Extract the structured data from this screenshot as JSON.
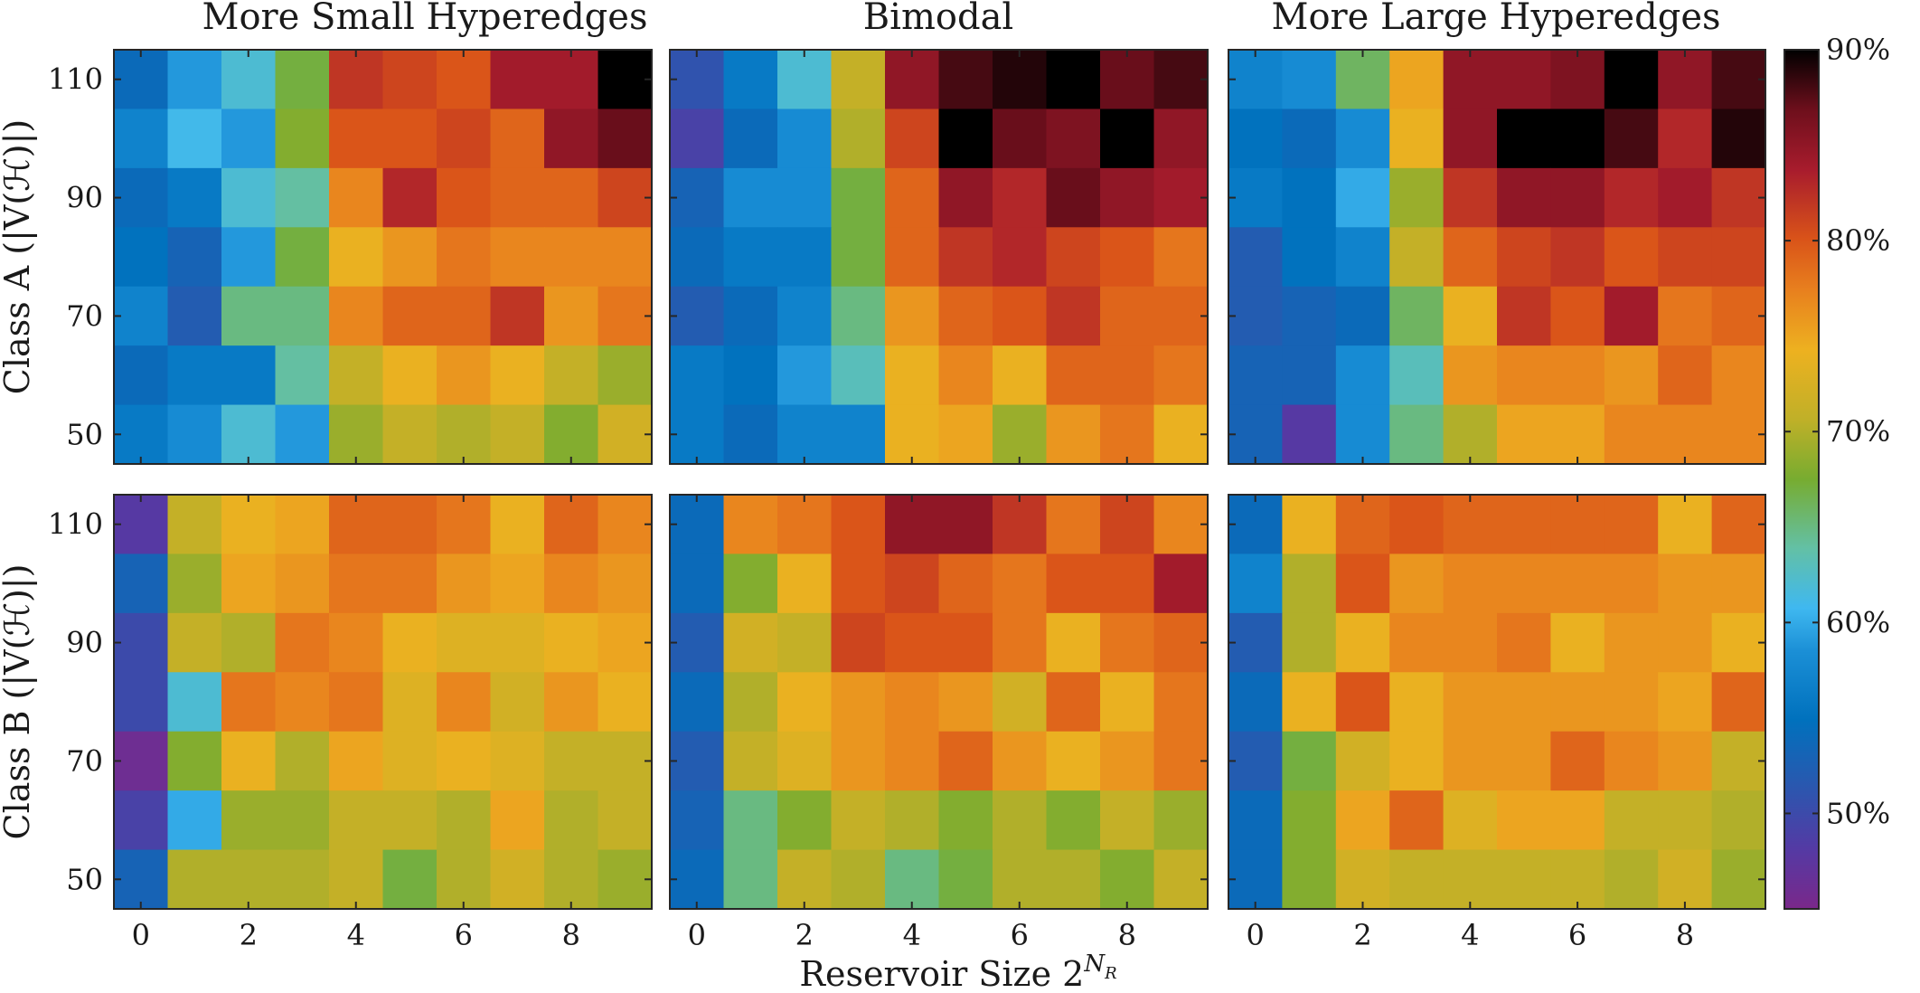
{
  "chart_data": {
    "type": "heatmap",
    "colormap": "parula-to-hot (purple, blue, cyan, green, yellow, orange, red, black)",
    "color_range": [
      45,
      90
    ],
    "colorbar": {
      "ticks": [
        50,
        60,
        70,
        80,
        90
      ],
      "tick_labels": [
        "50%",
        "60%",
        "70%",
        "80%",
        "90%"
      ]
    },
    "x_ticks": [
      0,
      2,
      4,
      6,
      8
    ],
    "y_ticks": [
      50,
      70,
      90,
      110
    ],
    "y_values": [
      110,
      100,
      90,
      80,
      70,
      60,
      50
    ],
    "x_values": [
      0,
      1,
      2,
      3,
      4,
      5,
      6,
      7,
      8,
      9
    ],
    "xlabel_text": "Reservoir Size 2",
    "xlabel_sup": "N",
    "xlabel_sub": "R",
    "row_labels": [
      "Class A (|V(ℋ)|)",
      "Class B (|V(ℋ)|)"
    ],
    "column_titles": [
      "More Small Hyperedges",
      "Bimodal",
      "More Large Hyperedges"
    ],
    "panels": [
      {
        "row": "Class A",
        "column": "More Small Hyperedges",
        "values": [
          [
            54,
            59,
            62,
            67,
            82,
            81,
            80,
            84,
            84,
            90
          ],
          [
            57,
            61,
            59,
            68,
            80,
            80,
            81,
            79,
            85,
            87
          ],
          [
            54,
            56,
            62,
            64,
            77,
            83,
            80,
            79,
            79,
            81
          ],
          [
            55,
            53,
            59,
            67,
            74,
            76,
            78,
            77,
            77,
            77
          ],
          [
            57,
            52,
            65,
            65,
            77,
            79,
            79,
            82,
            76,
            78
          ],
          [
            54,
            56,
            56,
            64,
            71,
            74,
            76,
            74,
            71,
            69
          ],
          [
            56,
            58,
            62,
            59,
            69,
            71,
            70,
            71,
            68,
            72
          ]
        ]
      },
      {
        "row": "Class A",
        "column": "Bimodal",
        "values": [
          [
            51,
            56,
            62,
            71,
            85,
            88,
            89,
            90,
            87,
            88
          ],
          [
            49,
            54,
            58,
            70,
            81,
            90,
            87,
            86,
            90,
            85
          ],
          [
            53,
            58,
            58,
            67,
            79,
            85,
            83,
            87,
            85,
            84
          ],
          [
            54,
            56,
            56,
            67,
            79,
            82,
            83,
            81,
            80,
            78
          ],
          [
            52,
            54,
            57,
            65,
            76,
            79,
            80,
            82,
            79,
            79
          ],
          [
            56,
            55,
            59,
            63,
            74,
            77,
            74,
            79,
            79,
            78
          ],
          [
            56,
            54,
            57,
            57,
            74,
            75,
            69,
            76,
            78,
            74
          ]
        ]
      },
      {
        "row": "Class A",
        "column": "More Large Hyperedges",
        "values": [
          [
            57,
            58,
            66,
            75,
            85,
            85,
            86,
            92,
            85,
            88
          ],
          [
            55,
            54,
            58,
            74,
            85,
            92,
            91,
            88,
            83,
            89
          ],
          [
            56,
            55,
            60,
            69,
            82,
            85,
            85,
            83,
            84,
            82
          ],
          [
            52,
            55,
            57,
            71,
            79,
            81,
            82,
            80,
            81,
            81
          ],
          [
            52,
            53,
            54,
            66,
            74,
            82,
            80,
            84,
            78,
            79
          ],
          [
            53,
            53,
            58,
            63,
            76,
            77,
            77,
            76,
            79,
            77
          ],
          [
            53,
            48,
            58,
            65,
            70,
            75,
            75,
            77,
            77,
            77
          ]
        ]
      },
      {
        "row": "Class B",
        "column": "More Small Hyperedges",
        "values": [
          [
            48,
            71,
            74,
            75,
            79,
            79,
            78,
            74,
            79,
            77
          ],
          [
            53,
            69,
            75,
            76,
            78,
            78,
            76,
            75,
            77,
            76
          ],
          [
            50,
            71,
            70,
            78,
            77,
            74,
            73,
            73,
            74,
            75
          ],
          [
            50,
            62,
            78,
            77,
            78,
            73,
            77,
            72,
            76,
            74
          ],
          [
            46,
            68,
            74,
            70,
            75,
            73,
            74,
            73,
            71,
            71
          ],
          [
            49,
            60,
            69,
            69,
            71,
            71,
            70,
            75,
            70,
            71
          ],
          [
            53,
            70,
            70,
            70,
            71,
            67,
            70,
            72,
            70,
            69
          ]
        ]
      },
      {
        "row": "Class B",
        "column": "Bimodal",
        "values": [
          [
            54,
            77,
            78,
            80,
            85,
            85,
            82,
            78,
            81,
            77
          ],
          [
            54,
            68,
            74,
            80,
            81,
            79,
            78,
            80,
            80,
            84
          ],
          [
            52,
            72,
            71,
            81,
            80,
            80,
            78,
            74,
            78,
            79
          ],
          [
            54,
            70,
            74,
            76,
            77,
            76,
            72,
            79,
            74,
            78
          ],
          [
            52,
            71,
            73,
            76,
            77,
            79,
            76,
            74,
            76,
            78
          ],
          [
            53,
            65,
            68,
            71,
            70,
            68,
            70,
            68,
            71,
            69
          ],
          [
            54,
            65,
            71,
            70,
            65,
            67,
            70,
            70,
            68,
            71
          ]
        ]
      },
      {
        "row": "Class B",
        "column": "More Large Hyperedges",
        "values": [
          [
            54,
            74,
            79,
            80,
            79,
            79,
            79,
            79,
            74,
            79
          ],
          [
            57,
            70,
            80,
            76,
            77,
            77,
            77,
            77,
            76,
            76
          ],
          [
            52,
            70,
            74,
            77,
            77,
            78,
            74,
            76,
            76,
            74
          ],
          [
            54,
            74,
            80,
            74,
            76,
            76,
            76,
            76,
            75,
            79
          ],
          [
            52,
            67,
            72,
            74,
            76,
            76,
            79,
            77,
            76,
            71
          ],
          [
            54,
            68,
            75,
            79,
            73,
            75,
            75,
            71,
            71,
            70
          ],
          [
            54,
            68,
            72,
            71,
            71,
            71,
            71,
            70,
            72,
            69
          ]
        ]
      }
    ]
  }
}
